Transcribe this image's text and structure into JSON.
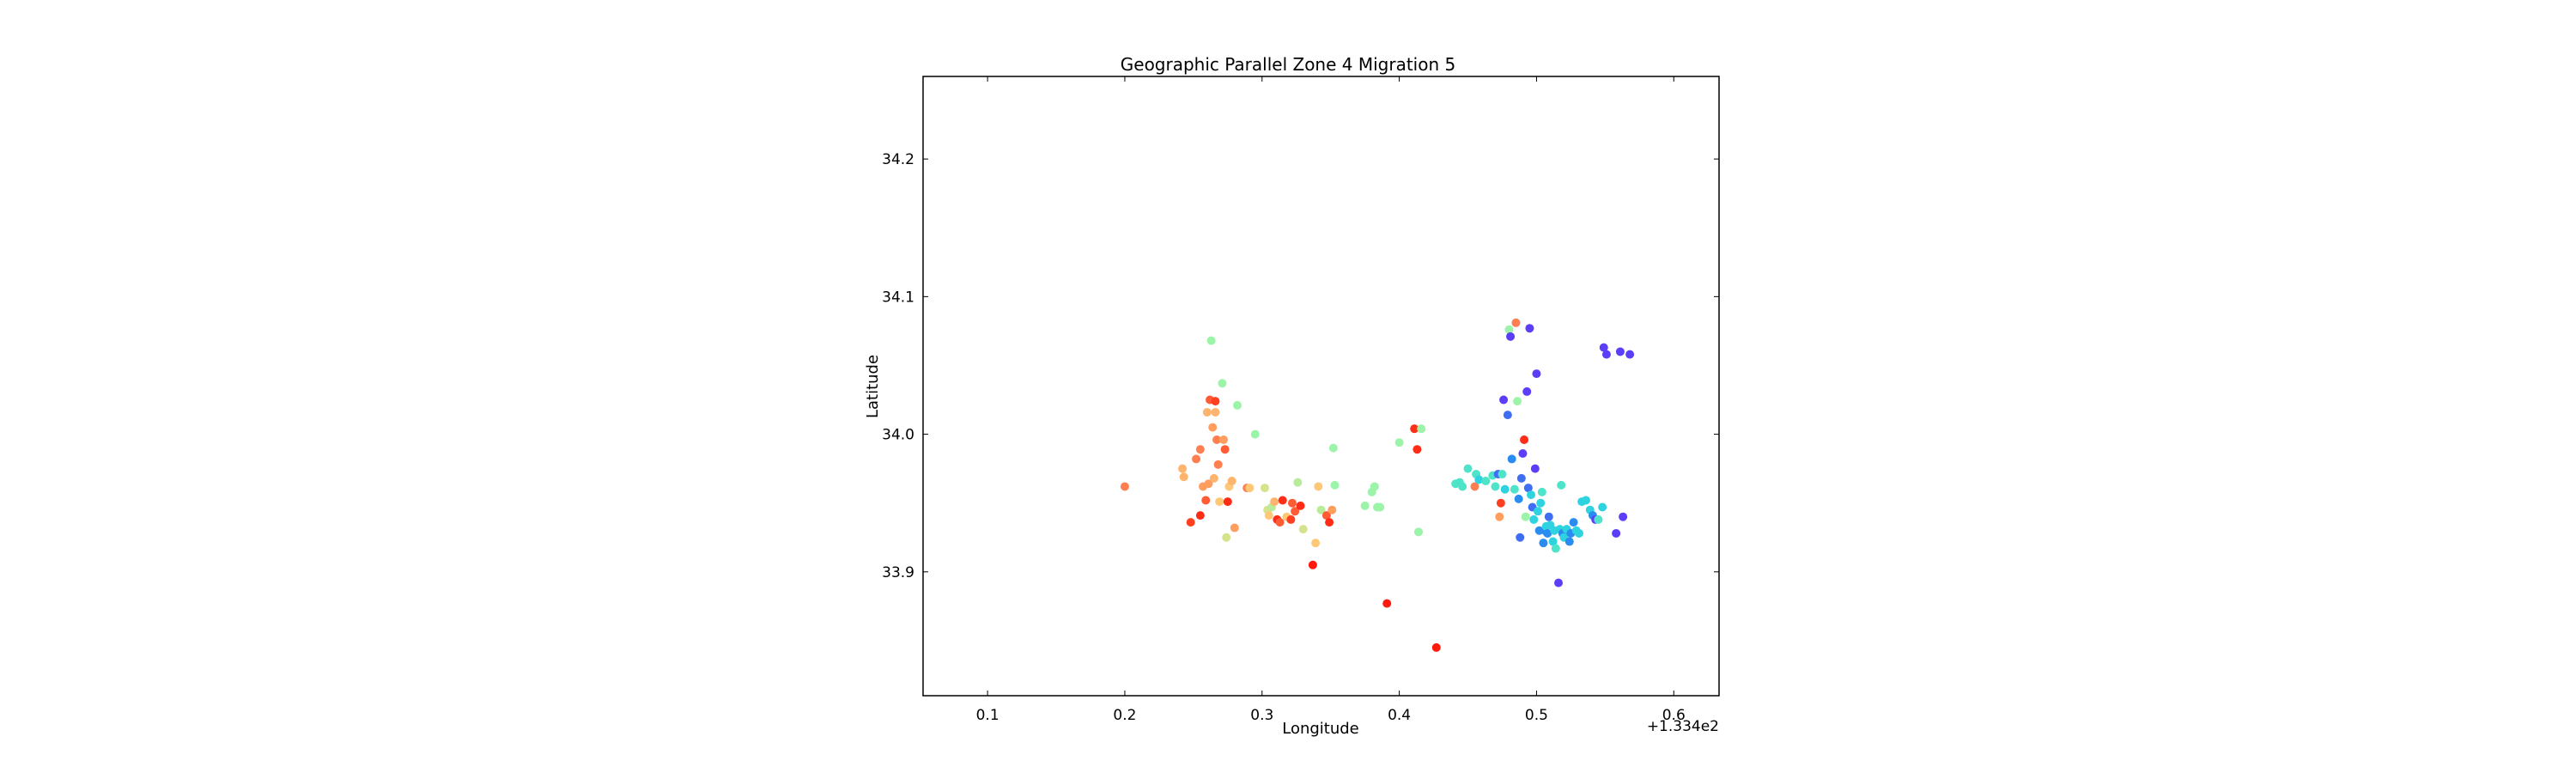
{
  "chart_data": {
    "type": "scatter",
    "title": "Geographic Parallel Zone 4 Migration 5",
    "xlabel": "Longitude",
    "ylabel": "Latitude",
    "x_offset_label": "+1.334e2",
    "xlim": [
      0.053,
      0.633
    ],
    "ylim": [
      33.81,
      34.26
    ],
    "xticks": [
      0.1,
      0.2,
      0.3,
      0.4,
      0.5,
      0.6
    ],
    "xtick_labels": [
      "0.1",
      "0.2",
      "0.3",
      "0.4",
      "0.5",
      "0.6"
    ],
    "yticks": [
      33.9,
      34.0,
      34.1,
      34.2
    ],
    "ytick_labels": [
      "33.9",
      "34.0",
      "34.1",
      "34.2"
    ],
    "grid": false,
    "legend": "none",
    "colormap": "rainbow",
    "points": [
      {
        "x": 0.2,
        "y": 33.962,
        "color": "#ff7f50"
      },
      {
        "x": 0.242,
        "y": 33.975,
        "color": "#ffb46e"
      },
      {
        "x": 0.243,
        "y": 33.969,
        "color": "#ffb46e"
      },
      {
        "x": 0.248,
        "y": 33.936,
        "color": "#ff3f20"
      },
      {
        "x": 0.252,
        "y": 33.982,
        "color": "#ff7f50"
      },
      {
        "x": 0.255,
        "y": 33.989,
        "color": "#ff7f50"
      },
      {
        "x": 0.255,
        "y": 33.941,
        "color": "#ff2d17"
      },
      {
        "x": 0.257,
        "y": 33.962,
        "color": "#ff9e5e"
      },
      {
        "x": 0.259,
        "y": 33.952,
        "color": "#ff5b35"
      },
      {
        "x": 0.26,
        "y": 34.016,
        "color": "#ffb46e"
      },
      {
        "x": 0.261,
        "y": 33.964,
        "color": "#ff9e5e"
      },
      {
        "x": 0.262,
        "y": 34.025,
        "color": "#ff5b35"
      },
      {
        "x": 0.263,
        "y": 34.068,
        "color": "#9cf4a8"
      },
      {
        "x": 0.264,
        "y": 34.005,
        "color": "#ff9e5e"
      },
      {
        "x": 0.265,
        "y": 33.968,
        "color": "#ffb46e"
      },
      {
        "x": 0.266,
        "y": 34.024,
        "color": "#ff3f20"
      },
      {
        "x": 0.266,
        "y": 34.016,
        "color": "#ffb46e"
      },
      {
        "x": 0.267,
        "y": 33.996,
        "color": "#ff7f50"
      },
      {
        "x": 0.268,
        "y": 33.978,
        "color": "#ff7f50"
      },
      {
        "x": 0.269,
        "y": 33.951,
        "color": "#ffc877"
      },
      {
        "x": 0.271,
        "y": 34.037,
        "color": "#9cf4a8"
      },
      {
        "x": 0.272,
        "y": 33.996,
        "color": "#ff9e5e"
      },
      {
        "x": 0.273,
        "y": 33.989,
        "color": "#ff5b35"
      },
      {
        "x": 0.274,
        "y": 33.925,
        "color": "#d4e48c"
      },
      {
        "x": 0.275,
        "y": 33.951,
        "color": "#ff2d17"
      },
      {
        "x": 0.276,
        "y": 33.962,
        "color": "#ffc877"
      },
      {
        "x": 0.278,
        "y": 33.966,
        "color": "#ffb46e"
      },
      {
        "x": 0.28,
        "y": 33.932,
        "color": "#ff9e5e"
      },
      {
        "x": 0.282,
        "y": 34.021,
        "color": "#9cf4a8"
      },
      {
        "x": 0.289,
        "y": 33.961,
        "color": "#ff7f50"
      },
      {
        "x": 0.291,
        "y": 33.961,
        "color": "#ffc877"
      },
      {
        "x": 0.295,
        "y": 34.0,
        "color": "#9cf4a8"
      },
      {
        "x": 0.302,
        "y": 33.961,
        "color": "#d4e48c"
      },
      {
        "x": 0.304,
        "y": 33.945,
        "color": "#d4e48c"
      },
      {
        "x": 0.305,
        "y": 33.941,
        "color": "#ffc877"
      },
      {
        "x": 0.307,
        "y": 33.947,
        "color": "#b8ec9a"
      },
      {
        "x": 0.309,
        "y": 33.951,
        "color": "#ffb46e"
      },
      {
        "x": 0.311,
        "y": 33.938,
        "color": "#ff2d17"
      },
      {
        "x": 0.313,
        "y": 33.936,
        "color": "#ff5b35"
      },
      {
        "x": 0.315,
        "y": 33.952,
        "color": "#ff2d17"
      },
      {
        "x": 0.318,
        "y": 33.94,
        "color": "#ffc877"
      },
      {
        "x": 0.321,
        "y": 33.938,
        "color": "#ff3f20"
      },
      {
        "x": 0.322,
        "y": 33.95,
        "color": "#ff5b35"
      },
      {
        "x": 0.324,
        "y": 33.944,
        "color": "#ff5b35"
      },
      {
        "x": 0.326,
        "y": 33.965,
        "color": "#b8ec9a"
      },
      {
        "x": 0.328,
        "y": 33.948,
        "color": "#ff2d17"
      },
      {
        "x": 0.33,
        "y": 33.931,
        "color": "#d4e48c"
      },
      {
        "x": 0.337,
        "y": 33.905,
        "color": "#ff1a0d"
      },
      {
        "x": 0.339,
        "y": 33.921,
        "color": "#ffc877"
      },
      {
        "x": 0.341,
        "y": 33.962,
        "color": "#ffc877"
      },
      {
        "x": 0.343,
        "y": 33.945,
        "color": "#b8ec9a"
      },
      {
        "x": 0.347,
        "y": 33.941,
        "color": "#ff5b35"
      },
      {
        "x": 0.349,
        "y": 33.936,
        "color": "#ff2d17"
      },
      {
        "x": 0.351,
        "y": 33.945,
        "color": "#ff9e5e"
      },
      {
        "x": 0.352,
        "y": 33.99,
        "color": "#9cf4a8"
      },
      {
        "x": 0.353,
        "y": 33.963,
        "color": "#9cf4a8"
      },
      {
        "x": 0.375,
        "y": 33.948,
        "color": "#9cf4a8"
      },
      {
        "x": 0.38,
        "y": 33.958,
        "color": "#9cf4a8"
      },
      {
        "x": 0.382,
        "y": 33.962,
        "color": "#9cf4a8"
      },
      {
        "x": 0.384,
        "y": 33.947,
        "color": "#9cf4a8"
      },
      {
        "x": 0.386,
        "y": 33.947,
        "color": "#9cf4a8"
      },
      {
        "x": 0.391,
        "y": 33.877,
        "color": "#ff1a0d"
      },
      {
        "x": 0.4,
        "y": 33.994,
        "color": "#9cf4a8"
      },
      {
        "x": 0.411,
        "y": 34.004,
        "color": "#ff2d17"
      },
      {
        "x": 0.413,
        "y": 33.989,
        "color": "#ff2d17"
      },
      {
        "x": 0.414,
        "y": 33.929,
        "color": "#9cf4a8"
      },
      {
        "x": 0.416,
        "y": 34.004,
        "color": "#9cf4a8"
      },
      {
        "x": 0.427,
        "y": 33.845,
        "color": "#ff1a0d"
      },
      {
        "x": 0.441,
        "y": 33.964,
        "color": "#4ee4c9"
      },
      {
        "x": 0.444,
        "y": 33.965,
        "color": "#4ee4c9"
      },
      {
        "x": 0.446,
        "y": 33.962,
        "color": "#4ee4c9"
      },
      {
        "x": 0.45,
        "y": 33.975,
        "color": "#4ee4c9"
      },
      {
        "x": 0.455,
        "y": 33.962,
        "color": "#ff7f50"
      },
      {
        "x": 0.456,
        "y": 33.971,
        "color": "#4ee4c9"
      },
      {
        "x": 0.458,
        "y": 33.967,
        "color": "#2fd3e0"
      },
      {
        "x": 0.463,
        "y": 33.966,
        "color": "#4ee4c9"
      },
      {
        "x": 0.468,
        "y": 33.97,
        "color": "#4ee4c9"
      },
      {
        "x": 0.47,
        "y": 33.962,
        "color": "#4ee4c9"
      },
      {
        "x": 0.472,
        "y": 33.971,
        "color": "#3f6ef5"
      },
      {
        "x": 0.473,
        "y": 33.94,
        "color": "#ff9e5e"
      },
      {
        "x": 0.474,
        "y": 33.95,
        "color": "#ff3f20"
      },
      {
        "x": 0.475,
        "y": 33.971,
        "color": "#4ee4c9"
      },
      {
        "x": 0.476,
        "y": 34.025,
        "color": "#5b3ff8"
      },
      {
        "x": 0.477,
        "y": 33.96,
        "color": "#2fd3e0"
      },
      {
        "x": 0.479,
        "y": 34.014,
        "color": "#3f6ef5"
      },
      {
        "x": 0.48,
        "y": 34.076,
        "color": "#9cf4a8"
      },
      {
        "x": 0.481,
        "y": 34.071,
        "color": "#5b3ff8"
      },
      {
        "x": 0.482,
        "y": 33.982,
        "color": "#2a8cf0"
      },
      {
        "x": 0.484,
        "y": 33.96,
        "color": "#4ee4c9"
      },
      {
        "x": 0.485,
        "y": 34.081,
        "color": "#ff7f50"
      },
      {
        "x": 0.486,
        "y": 34.024,
        "color": "#9cf4a8"
      },
      {
        "x": 0.487,
        "y": 33.953,
        "color": "#2a8cf0"
      },
      {
        "x": 0.488,
        "y": 33.925,
        "color": "#3f6ef5"
      },
      {
        "x": 0.489,
        "y": 33.968,
        "color": "#3f6ef5"
      },
      {
        "x": 0.49,
        "y": 33.986,
        "color": "#5b3ff8"
      },
      {
        "x": 0.491,
        "y": 33.996,
        "color": "#ff2d17"
      },
      {
        "x": 0.492,
        "y": 33.94,
        "color": "#9cf4a8"
      },
      {
        "x": 0.493,
        "y": 34.031,
        "color": "#5b3ff8"
      },
      {
        "x": 0.494,
        "y": 33.961,
        "color": "#3f6ef5"
      },
      {
        "x": 0.495,
        "y": 34.077,
        "color": "#5b3ff8"
      },
      {
        "x": 0.496,
        "y": 33.956,
        "color": "#2fd3e0"
      },
      {
        "x": 0.497,
        "y": 33.947,
        "color": "#3f6ef5"
      },
      {
        "x": 0.498,
        "y": 33.938,
        "color": "#2fd3e0"
      },
      {
        "x": 0.499,
        "y": 33.975,
        "color": "#5b3ff8"
      },
      {
        "x": 0.5,
        "y": 34.044,
        "color": "#5b3ff8"
      },
      {
        "x": 0.501,
        "y": 33.944,
        "color": "#2fd3e0"
      },
      {
        "x": 0.502,
        "y": 33.93,
        "color": "#2a8cf0"
      },
      {
        "x": 0.503,
        "y": 33.95,
        "color": "#2fd3e0"
      },
      {
        "x": 0.504,
        "y": 33.958,
        "color": "#4ee4c9"
      },
      {
        "x": 0.505,
        "y": 33.921,
        "color": "#2a8cf0"
      },
      {
        "x": 0.506,
        "y": 33.93,
        "color": "#2a8cf0"
      },
      {
        "x": 0.507,
        "y": 33.933,
        "color": "#2fd3e0"
      },
      {
        "x": 0.508,
        "y": 33.928,
        "color": "#2a8cf0"
      },
      {
        "x": 0.509,
        "y": 33.94,
        "color": "#3f6ef5"
      },
      {
        "x": 0.51,
        "y": 33.934,
        "color": "#2fd3e0"
      },
      {
        "x": 0.512,
        "y": 33.922,
        "color": "#2fd3e0"
      },
      {
        "x": 0.513,
        "y": 33.93,
        "color": "#2fd3e0"
      },
      {
        "x": 0.514,
        "y": 33.917,
        "color": "#4ee4c9"
      },
      {
        "x": 0.516,
        "y": 33.892,
        "color": "#5b3ff8"
      },
      {
        "x": 0.517,
        "y": 33.931,
        "color": "#2fd3e0"
      },
      {
        "x": 0.518,
        "y": 33.963,
        "color": "#4ee4c9"
      },
      {
        "x": 0.519,
        "y": 33.928,
        "color": "#2a8cf0"
      },
      {
        "x": 0.52,
        "y": 33.925,
        "color": "#2fd3e0"
      },
      {
        "x": 0.522,
        "y": 33.931,
        "color": "#2fd3e0"
      },
      {
        "x": 0.524,
        "y": 33.922,
        "color": "#2a8cf0"
      },
      {
        "x": 0.525,
        "y": 33.928,
        "color": "#2a8cf0"
      },
      {
        "x": 0.527,
        "y": 33.936,
        "color": "#2a8cf0"
      },
      {
        "x": 0.529,
        "y": 33.93,
        "color": "#2fd3e0"
      },
      {
        "x": 0.531,
        "y": 33.928,
        "color": "#2fd3e0"
      },
      {
        "x": 0.533,
        "y": 33.951,
        "color": "#2fd3e0"
      },
      {
        "x": 0.536,
        "y": 33.952,
        "color": "#2fd3e0"
      },
      {
        "x": 0.539,
        "y": 33.945,
        "color": "#2fd3e0"
      },
      {
        "x": 0.541,
        "y": 33.941,
        "color": "#2a8cf0"
      },
      {
        "x": 0.543,
        "y": 33.938,
        "color": "#5b3ff8"
      },
      {
        "x": 0.545,
        "y": 33.938,
        "color": "#4ee4c9"
      },
      {
        "x": 0.548,
        "y": 33.947,
        "color": "#2fd3e0"
      },
      {
        "x": 0.549,
        "y": 34.063,
        "color": "#5b3ff8"
      },
      {
        "x": 0.551,
        "y": 34.058,
        "color": "#5b3ff8"
      },
      {
        "x": 0.558,
        "y": 33.928,
        "color": "#5b3ff8"
      },
      {
        "x": 0.561,
        "y": 34.06,
        "color": "#5b3ff8"
      },
      {
        "x": 0.563,
        "y": 33.94,
        "color": "#5b3ff8"
      },
      {
        "x": 0.568,
        "y": 34.058,
        "color": "#5b3ff8"
      }
    ]
  }
}
